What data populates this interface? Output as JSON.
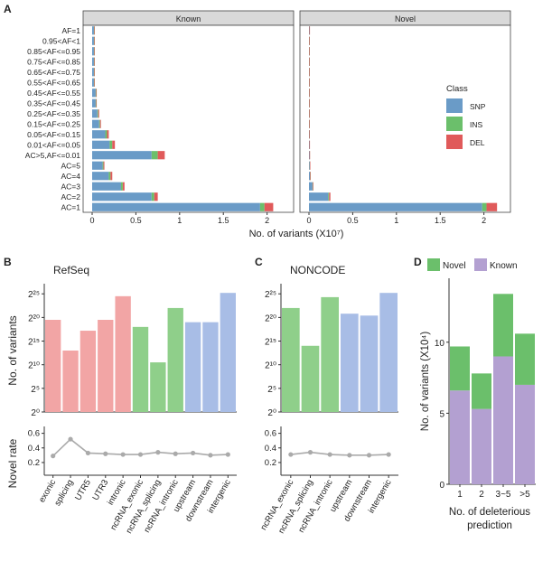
{
  "colors": {
    "snp": "#6a9bc7",
    "ins": "#6bbf6b",
    "del": "#e05a5a",
    "refseq_utr": "#f2a5a5",
    "refseq_nc": "#8fcf8a",
    "refseq_inter": "#a8bde6",
    "panel_bg": "#ebebeb",
    "strip_bg": "#d9d9d9",
    "novel": "#6bbf6b",
    "known": "#b3a0d1",
    "line": "#aaaaaa"
  },
  "panel_labels": {
    "a": "A",
    "b": "B",
    "c": "C",
    "d": "D"
  },
  "chart_data": [
    {
      "id": "A",
      "type": "bar",
      "orientation": "horizontal",
      "stacked": true,
      "facets": [
        "Known",
        "Novel"
      ],
      "categories": [
        "AF=1",
        "0.95<AF<1",
        "0.85<AF<=0.95",
        "0.75<AF<=0.85",
        "0.65<AF<=0.75",
        "0.55<AF<=0.65",
        "0.45<AF<=0.55",
        "0.35<AF<=0.45",
        "0.25<AF<=0.35",
        "0.15<AF<=0.25",
        "0.05<AF<=0.15",
        "0.01<AF<=0.05",
        "AC>5,AF<=0.01",
        "AC=5",
        "AC=4",
        "AC=3",
        "AC=2",
        "AC=1"
      ],
      "series": [
        {
          "name": "SNP",
          "known": [
            0.02,
            0.02,
            0.02,
            0.02,
            0.02,
            0.02,
            0.04,
            0.04,
            0.06,
            0.08,
            0.15,
            0.2,
            0.68,
            0.12,
            0.19,
            0.33,
            0.68,
            1.92
          ],
          "novel": [
            0.004,
            0.002,
            0.002,
            0.002,
            0.002,
            0.002,
            0.002,
            0.002,
            0.002,
            0.002,
            0.003,
            0.004,
            0.005,
            0.008,
            0.012,
            0.04,
            0.22,
            1.98
          ]
        },
        {
          "name": "INS",
          "known": [
            0.004,
            0.004,
            0.004,
            0.004,
            0.004,
            0.004,
            0.006,
            0.006,
            0.01,
            0.01,
            0.02,
            0.03,
            0.07,
            0.01,
            0.02,
            0.02,
            0.03,
            0.05
          ],
          "novel": [
            0.001,
            0.001,
            0.001,
            0.001,
            0.001,
            0.001,
            0.001,
            0.001,
            0.001,
            0.001,
            0.001,
            0.001,
            0.001,
            0.001,
            0.002,
            0.004,
            0.01,
            0.05
          ]
        },
        {
          "name": "DEL",
          "known": [
            0.004,
            0.004,
            0.004,
            0.004,
            0.004,
            0.004,
            0.006,
            0.006,
            0.01,
            0.01,
            0.02,
            0.03,
            0.08,
            0.01,
            0.02,
            0.02,
            0.04,
            0.1
          ],
          "novel": [
            0.001,
            0.001,
            0.001,
            0.001,
            0.001,
            0.001,
            0.001,
            0.001,
            0.001,
            0.001,
            0.001,
            0.001,
            0.001,
            0.001,
            0.002,
            0.004,
            0.015,
            0.12
          ]
        }
      ],
      "xlim": [
        0,
        2.2
      ],
      "xticks": [
        "0",
        "0.5",
        "1",
        "1.5",
        "2"
      ],
      "xlabel": "No. of variants (X10⁷)",
      "legend": {
        "title": "Class",
        "entries": [
          "SNP",
          "INS",
          "DEL"
        ]
      }
    },
    {
      "id": "B",
      "type": "bar",
      "title": "RefSeq",
      "categories": [
        "exonic",
        "splicing",
        "UTR5",
        "UTR3",
        "intronic",
        "ncRNA_exonic",
        "ncRNA_splicing",
        "ncRNA_intronic",
        "upstream",
        "downstream",
        "intergenic"
      ],
      "groups": [
        "gene",
        "gene",
        "gene",
        "gene",
        "gene",
        "ncrna",
        "ncrna",
        "ncrna",
        "inter",
        "inter",
        "inter"
      ],
      "log2_values": [
        19.5,
        13,
        17.2,
        19.5,
        24.5,
        18,
        10.5,
        22,
        19,
        19,
        25.2
      ],
      "ylabel": "No. of variants",
      "yticks": [
        "2⁰",
        "2⁵",
        "2¹⁰",
        "2¹⁵",
        "2²⁰",
        "2²⁵"
      ],
      "ylim_log2": [
        0,
        26
      ],
      "novel_rate": [
        0.29,
        0.52,
        0.33,
        0.32,
        0.31,
        0.31,
        0.34,
        0.32,
        0.33,
        0.3,
        0.31
      ],
      "rate_ylabel": "Novel rate",
      "rate_yticks": [
        "0.2",
        "0.4",
        "0.6"
      ],
      "rate_ylim": [
        0.1,
        0.62
      ]
    },
    {
      "id": "C",
      "type": "bar",
      "title": "NONCODE",
      "categories": [
        "ncRNA_exonic",
        "ncRNA_splicing",
        "ncRNA_intronic",
        "upstream",
        "downstream",
        "intergenic"
      ],
      "groups": [
        "ncrna",
        "ncrna",
        "ncrna",
        "inter",
        "inter",
        "inter"
      ],
      "log2_values": [
        22,
        14,
        24.3,
        20.8,
        20.4,
        25.2
      ],
      "ylabel": "",
      "yticks": [
        "2⁰",
        "2⁵",
        "2¹⁰",
        "2¹⁵",
        "2²⁰",
        "2²⁵"
      ],
      "ylim_log2": [
        0,
        26
      ],
      "novel_rate": [
        0.31,
        0.34,
        0.31,
        0.3,
        0.3,
        0.31
      ],
      "rate_yticks": [
        "0.2",
        "0.4",
        "0.6"
      ],
      "rate_ylim": [
        0.1,
        0.62
      ]
    },
    {
      "id": "D",
      "type": "bar",
      "stacked": true,
      "categories": [
        "1",
        "2",
        "3~5",
        ">5"
      ],
      "series": [
        {
          "name": "Known",
          "values": [
            6.6,
            5.3,
            9.0,
            7.0
          ]
        },
        {
          "name": "Novel",
          "values": [
            3.1,
            2.5,
            4.4,
            3.6
          ]
        }
      ],
      "ylim": [
        0,
        14.5
      ],
      "yticks": [
        "0",
        "5",
        "10"
      ],
      "ylabel": "No. of variants (X10⁴)",
      "xlabel_line1": "No. of deleterious",
      "xlabel_line2": "prediction",
      "legend": [
        "Novel",
        "Known"
      ]
    }
  ]
}
